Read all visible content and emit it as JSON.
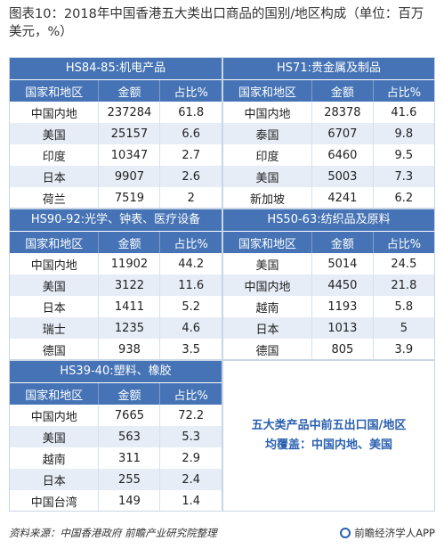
{
  "title": "图表10：2018年中国香港五大类出口商品的国别/地区构成（单位：百万美元，%）",
  "headers": [
    "国家和地区",
    "金额",
    "占比%"
  ],
  "panels": [
    {
      "name": "HS84-85:机电产品",
      "rows": [
        [
          "中国内地",
          "237284",
          "61.8"
        ],
        [
          "美国",
          "25157",
          "6.6"
        ],
        [
          "印度",
          "10347",
          "2.7"
        ],
        [
          "日本",
          "9907",
          "2.6"
        ],
        [
          "荷兰",
          "7519",
          "2"
        ]
      ]
    },
    {
      "name": "HS71:贵金属及制品",
      "rows": [
        [
          "中国内地",
          "28378",
          "41.6"
        ],
        [
          "泰国",
          "6707",
          "9.8"
        ],
        [
          "印度",
          "6460",
          "9.5"
        ],
        [
          "美国",
          "5003",
          "7.3"
        ],
        [
          "新加坡",
          "4241",
          "6.2"
        ]
      ]
    },
    {
      "name": "HS90-92:光学、钟表、医疗设备",
      "rows": [
        [
          "中国内地",
          "11902",
          "44.2"
        ],
        [
          "美国",
          "3122",
          "11.6"
        ],
        [
          "日本",
          "1411",
          "5.2"
        ],
        [
          "瑞士",
          "1235",
          "4.6"
        ],
        [
          "德国",
          "938",
          "3.5"
        ]
      ]
    },
    {
      "name": "HS50-63:纺织品及原料",
      "rows": [
        [
          "美国",
          "5014",
          "24.5"
        ],
        [
          "中国内地",
          "4450",
          "21.8"
        ],
        [
          "越南",
          "1193",
          "5.8"
        ],
        [
          "日本",
          "1013",
          "5"
        ],
        [
          "德国",
          "805",
          "3.9"
        ]
      ]
    },
    {
      "name": "HS39-40:塑料、橡胶",
      "rows": [
        [
          "中国内地",
          "7665",
          "72.2"
        ],
        [
          "美国",
          "563",
          "5.3"
        ],
        [
          "越南",
          "311",
          "2.9"
        ],
        [
          "日本",
          "255",
          "2.4"
        ],
        [
          "中国台湾",
          "149",
          "1.4"
        ]
      ]
    }
  ],
  "summary": [
    "五大类产品中前五出口国/地区",
    "均覆盖：中国内地、美国"
  ],
  "footer": {
    "source": "资料来源：中国香港政府  前瞻产业研究院整理",
    "brand": "前瞻经济学人APP",
    "brand_icon": "brand-logo-icon"
  }
}
